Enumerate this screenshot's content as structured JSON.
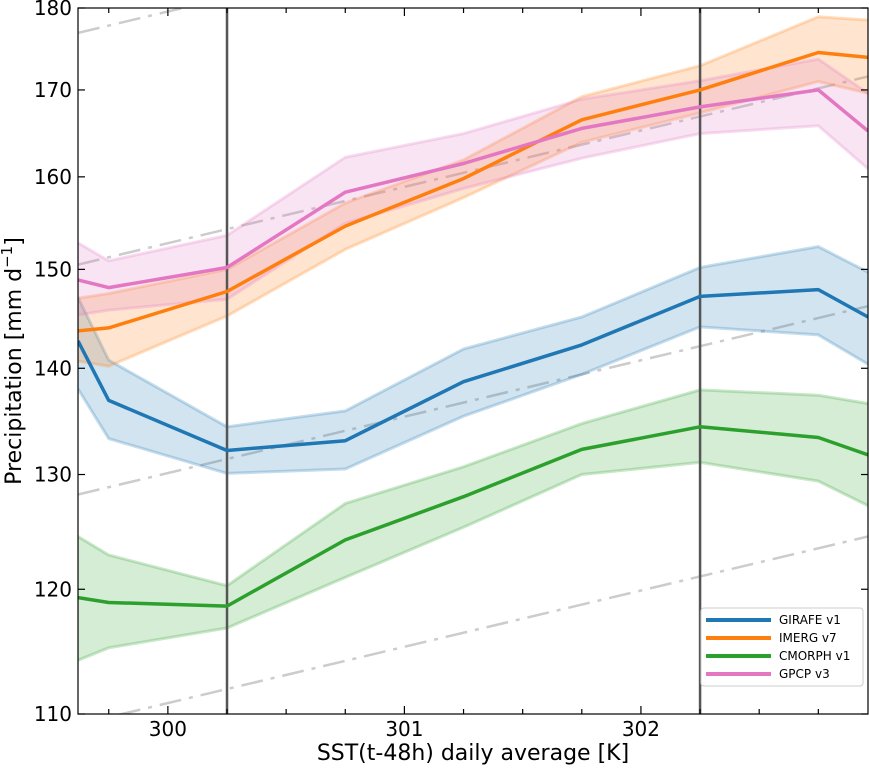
{
  "chart_data": {
    "type": "line",
    "title": "",
    "xlabel": "SST(t-48h) daily average [K]",
    "ylabel_main": "Precipitation [mm d",
    "ylabel_sup": "−1",
    "ylabel_end": "]",
    "y_scale": "log",
    "xlim": [
      299.62,
      302.96
    ],
    "ylim": [
      110,
      180
    ],
    "xticks": [
      300,
      301,
      302
    ],
    "xtick_labels": [
      "300",
      "301",
      "302"
    ],
    "yticks": [
      110,
      120,
      130,
      140,
      150,
      160,
      170,
      180
    ],
    "ytick_labels": [
      "110",
      "120",
      "130",
      "140",
      "150",
      "160",
      "170",
      "180"
    ],
    "vertical_lines": [
      300.25,
      302.25
    ],
    "x": [
      299.62,
      299.75,
      300.25,
      300.75,
      301.25,
      301.75,
      302.25,
      302.75,
      302.96
    ],
    "series": [
      {
        "name": "GIRAFE v1",
        "color": "#1f77b4",
        "values": [
          142.7,
          136.9,
          132.2,
          133.1,
          138.7,
          142.3,
          147.2,
          147.9,
          145.1
        ],
        "lower": [
          138.0,
          133.3,
          130.1,
          130.5,
          135.4,
          139.4,
          144.1,
          143.3,
          140.4
        ],
        "upper": [
          147.1,
          140.8,
          134.4,
          135.9,
          141.9,
          145.1,
          150.2,
          152.4,
          149.7
        ]
      },
      {
        "name": "IMERG v7",
        "color": "#ff7f0e",
        "values": [
          143.7,
          144.0,
          147.7,
          154.6,
          159.8,
          166.5,
          170.0,
          174.5,
          173.9
        ],
        "lower": [
          140.7,
          140.2,
          145.2,
          152.1,
          157.7,
          163.9,
          167.3,
          171.0,
          169.6
        ],
        "upper": [
          147.0,
          147.5,
          150.0,
          157.1,
          161.9,
          169.2,
          172.9,
          178.9,
          178.5
        ]
      },
      {
        "name": "CMORPH v1",
        "color": "#2ca02c",
        "values": [
          119.3,
          118.9,
          118.6,
          124.2,
          128.0,
          132.3,
          134.4,
          133.4,
          131.8
        ],
        "lower": [
          114.2,
          115.2,
          116.8,
          121.0,
          125.3,
          130.0,
          131.1,
          129.4,
          127.2
        ],
        "upper": [
          124.5,
          122.9,
          120.3,
          127.4,
          130.7,
          134.7,
          137.9,
          137.4,
          136.6
        ]
      },
      {
        "name": "GPCP v3",
        "color": "#e377c2",
        "values": [
          148.9,
          148.1,
          150.2,
          158.3,
          161.5,
          165.5,
          168.0,
          170.0,
          165.2
        ],
        "lower": [
          145.3,
          145.8,
          146.9,
          154.9,
          158.7,
          162.1,
          164.9,
          165.8,
          160.9
        ],
        "upper": [
          152.8,
          150.9,
          153.6,
          162.2,
          164.9,
          168.9,
          171.1,
          173.7,
          169.6
        ]
      }
    ],
    "reference_lines": [
      {
        "x": [
          299.62,
          302.96
        ],
        "y": [
          176.9,
          201.7
        ]
      },
      {
        "x": [
          299.62,
          302.96
        ],
        "y": [
          150.5,
          171.6
        ]
      },
      {
        "x": [
          299.62,
          302.96
        ],
        "y": [
          128.2,
          146.2
        ]
      },
      {
        "x": [
          299.62,
          302.96
        ],
        "y": [
          109.2,
          124.5
        ]
      }
    ],
    "legend_position": "lower-right",
    "grid": false
  }
}
